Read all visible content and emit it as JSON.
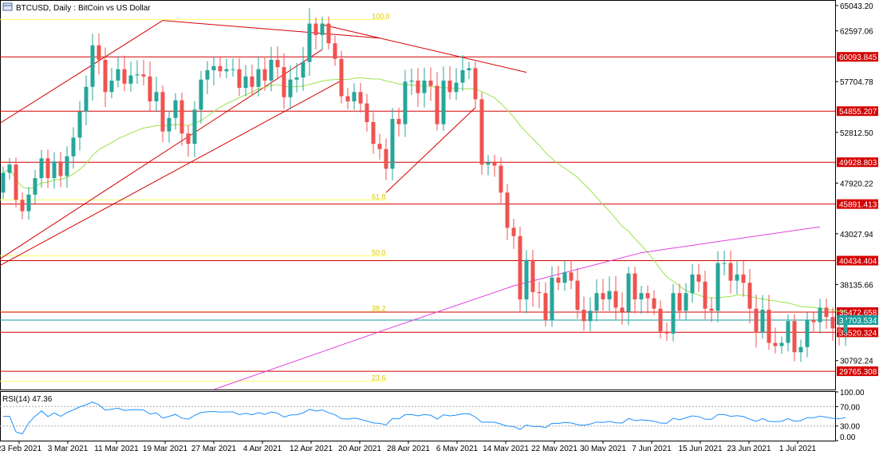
{
  "header": {
    "symbol": "BTCUSD",
    "timeframe": "Daily",
    "description": "BitCoin vs US Dollar"
  },
  "rsi": {
    "label": "RSI(14) 47.36",
    "scale": [
      "100.00",
      "70.00",
      "30.00",
      "0.00"
    ]
  },
  "colors": {
    "bull": "#26a69a",
    "bear": "#ef5350",
    "ma_short": "#9be34a",
    "ma_long": "#e040e0",
    "hline": "#d50000",
    "fib": "#ffff66",
    "trend": "#d50000",
    "rsi_line": "#1e90ff",
    "current": "#1a9c9c"
  },
  "chart_data": {
    "type": "candlestick",
    "symbol": "BTCUSD",
    "timeframe": "Daily",
    "ylim": [
      28000,
      65500
    ],
    "price_ticks": [
      "65043.20",
      "62597.06",
      "57704.78",
      "52812.50",
      "47920.22",
      "43027.94",
      "38135.66",
      "30792.24"
    ],
    "date_ticks": [
      "23 Feb 2021",
      "3 Mar 2021",
      "11 Mar 2021",
      "19 Mar 2021",
      "27 Mar 2021",
      "4 Apr 2021",
      "12 Apr 2021",
      "20 Apr 2021",
      "28 Apr 2021",
      "6 May 2021",
      "14 May 2021",
      "22 May 2021",
      "30 May 2021",
      "7 Jun 2021",
      "15 Jun 2021",
      "23 Jun 2021",
      "1 Jul 2021"
    ],
    "horizontal_levels": [
      "60093.845",
      "54855.207",
      "49928.803",
      "45891.413",
      "40434.404",
      "35472.658",
      "33520.324",
      "29765.308"
    ],
    "current_price": "34703.534",
    "fibonacci": [
      {
        "label": "100.0",
        "price": 63700
      },
      {
        "label": "61.8",
        "price": 46300
      },
      {
        "label": "50.0",
        "price": 40900
      },
      {
        "label": "38.2",
        "price": 35500
      },
      {
        "label": "23.6",
        "price": 28800
      }
    ],
    "closes": [
      48900,
      49700,
      46300,
      45200,
      46800,
      48400,
      50300,
      48400,
      50000,
      48600,
      50500,
      52300,
      54800,
      57200,
      61200,
      59800,
      56700,
      57800,
      58900,
      57500,
      58300,
      58400,
      58200,
      55800,
      56700,
      52900,
      54200,
      55900,
      52700,
      51700,
      55000,
      57900,
      58800,
      59200,
      58700,
      58900,
      58900,
      57100,
      58200,
      57200,
      58900,
      57800,
      59800,
      59100,
      56200,
      57900,
      58100,
      59600,
      63300,
      62200,
      63300,
      61400,
      59900,
      56300,
      55800,
      56700,
      55600,
      53800,
      51700,
      51200,
      49300,
      54100,
      53600,
      57700,
      57800,
      56600,
      57800,
      57300,
      53600,
      57800,
      56700,
      57600,
      58800,
      59000,
      56000,
      49700,
      49900,
      49600,
      47000,
      43600,
      42800,
      36700,
      40500,
      37400,
      37300,
      34700,
      38800,
      38300,
      39300,
      38500,
      35700,
      34600,
      35600,
      37300,
      36700,
      37500,
      35900,
      35500,
      39200,
      36700,
      37300,
      36800,
      35800,
      33600,
      33400,
      37300,
      35600,
      37300,
      39100,
      38400,
      35800,
      35600,
      40200,
      40200,
      38500,
      39100,
      38300,
      35800,
      33500,
      35700,
      32500,
      32200,
      32500,
      34600,
      31600,
      32100,
      34700,
      34500,
      35900,
      35000,
      33900,
      33500,
      34700
    ],
    "rsi_14_last": 47.36
  }
}
